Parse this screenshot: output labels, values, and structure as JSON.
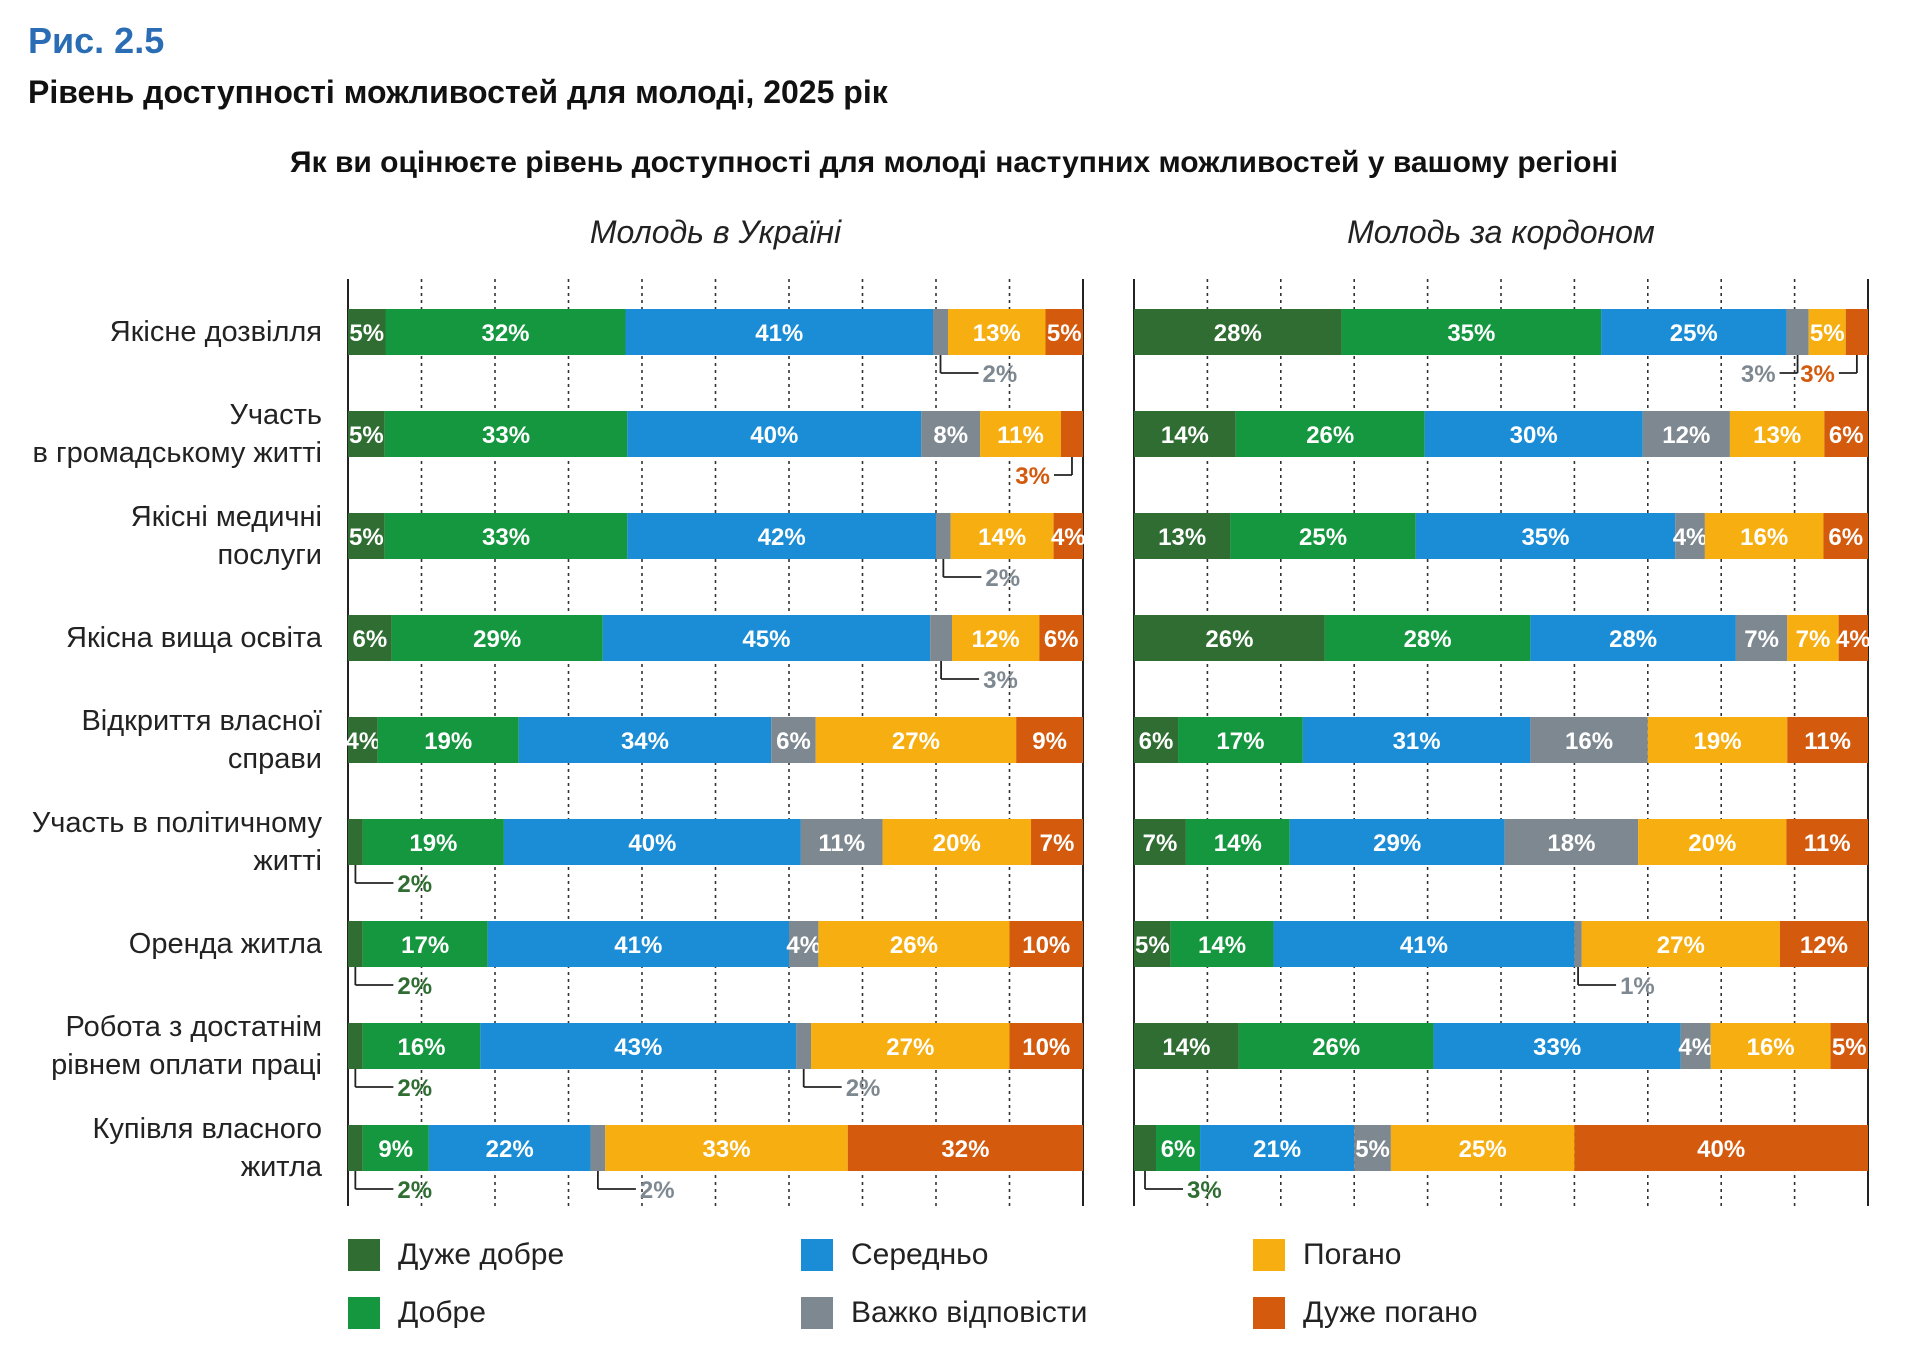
{
  "figure_number": "Рис. 2.5",
  "figure_title": "Рівень доступності можливостей для молоді, 2025 рік",
  "chart_data": {
    "type": "bar",
    "orientation": "horizontal-stacked-100",
    "title": "Як ви оцінюєте рівень доступності для молоді наступних можливостей у вашому регіоні",
    "categories": [
      "Якісне дозвілля",
      "Участь\nв громадському житті",
      "Якісні медичні\nпослуги",
      "Якісна вища освіта",
      "Відкриття власної\nсправи",
      "Участь в політичному\nжитті",
      "Оренда житла",
      "Робота з достатнім\nрівнем оплати праці",
      "Купівля власного\nжитла"
    ],
    "levels": [
      {
        "name": "Дуже добре",
        "color": "#2f6d32"
      },
      {
        "name": "Добре",
        "color": "#15973f"
      },
      {
        "name": "Середньо",
        "color": "#1b8dd6"
      },
      {
        "name": "Важко відповісти",
        "color": "#7e8891"
      },
      {
        "name": "Погано",
        "color": "#f6ae10"
      },
      {
        "name": "Дуже погано",
        "color": "#d45a0d"
      }
    ],
    "panels": [
      {
        "title": "Молодь в Україні",
        "values": [
          [
            5,
            32,
            41,
            2,
            13,
            5
          ],
          [
            5,
            33,
            40,
            8,
            11,
            3
          ],
          [
            5,
            33,
            42,
            2,
            14,
            4
          ],
          [
            6,
            29,
            45,
            3,
            12,
            6
          ],
          [
            4,
            19,
            34,
            6,
            27,
            9
          ],
          [
            2,
            19,
            40,
            11,
            20,
            7
          ],
          [
            2,
            17,
            41,
            4,
            26,
            10
          ],
          [
            2,
            16,
            43,
            2,
            27,
            10
          ],
          [
            2,
            9,
            22,
            2,
            33,
            32
          ]
        ]
      },
      {
        "title": "Молодь за кордоном",
        "values": [
          [
            28,
            35,
            25,
            3,
            5,
            3
          ],
          [
            14,
            26,
            30,
            12,
            13,
            6
          ],
          [
            13,
            25,
            35,
            4,
            16,
            6
          ],
          [
            26,
            28,
            28,
            7,
            7,
            4
          ],
          [
            6,
            17,
            31,
            16,
            19,
            11
          ],
          [
            7,
            14,
            29,
            18,
            20,
            11
          ],
          [
            5,
            14,
            41,
            1,
            27,
            12
          ],
          [
            14,
            26,
            33,
            4,
            16,
            5
          ],
          [
            3,
            6,
            21,
            5,
            25,
            40
          ]
        ]
      }
    ],
    "value_suffix": "%",
    "xlim": [
      0,
      100
    ],
    "grid": true,
    "legend_position": "bottom"
  }
}
